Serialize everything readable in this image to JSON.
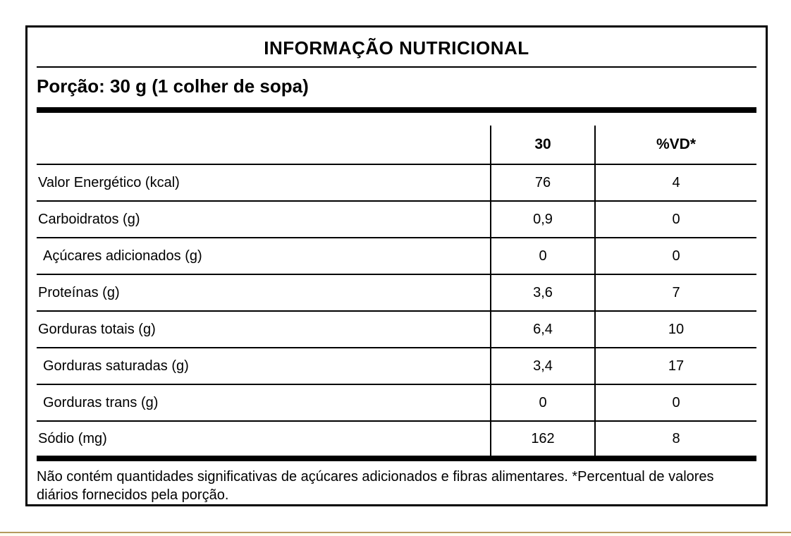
{
  "panel": {
    "title": "INFORMAÇÃO NUTRICIONAL",
    "serving": "Porção: 30 g (1 colher de sopa)",
    "table": {
      "header": {
        "quantity": "30",
        "dv": "%VD*"
      },
      "rows": [
        {
          "label": "Valor Energético (kcal)",
          "value": "76",
          "dv": "4"
        },
        {
          "label": "Carboidratos (g)",
          "value": "0,9",
          "dv": "0"
        },
        {
          "label": "Açúcares adicionados (g)",
          "value": "0",
          "dv": "0"
        },
        {
          "label": "Proteínas (g)",
          "value": "3,6",
          "dv": "7"
        },
        {
          "label": "Gorduras totais (g)",
          "value": "6,4",
          "dv": "10"
        },
        {
          "label": "Gorduras saturadas (g)",
          "value": "3,4",
          "dv": "17"
        },
        {
          "label": "Gorduras trans (g)",
          "value": "0",
          "dv": "0"
        },
        {
          "label": "Sódio (mg)",
          "value": "162",
          "dv": "8"
        }
      ]
    },
    "footnote": "Não contém quantidades significativas de açúcares adicionados e fibras alimentares. *Percentual de valores diários fornecidos pela porção."
  },
  "colors": {
    "accent_line": "#b49a5e",
    "accent_bg": "#fffdf2"
  }
}
